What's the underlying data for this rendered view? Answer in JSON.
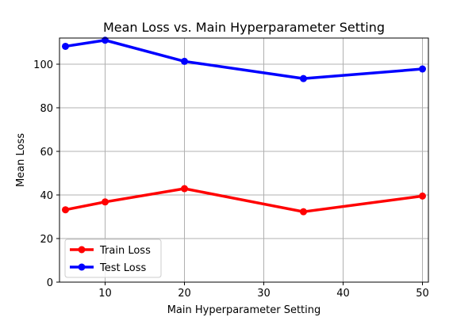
{
  "chart_data": {
    "type": "line",
    "title": "Mean Loss vs. Main Hyperparameter Setting",
    "xlabel": "Main Hyperparameter Setting",
    "ylabel": "Mean Loss",
    "xlim": [
      4.25,
      50.75
    ],
    "ylim": [
      0,
      112
    ],
    "x_ticks": [
      10,
      20,
      30,
      40,
      50
    ],
    "y_ticks": [
      0,
      20,
      40,
      60,
      80,
      100
    ],
    "grid": true,
    "legend_position": "lower-left",
    "x": [
      5,
      10,
      20,
      35,
      50
    ],
    "series": [
      {
        "name": "Train Loss",
        "color": "#ff0000",
        "values": [
          33.2,
          36.8,
          42.9,
          32.3,
          39.5
        ]
      },
      {
        "name": "Test Loss",
        "color": "#0000ff",
        "values": [
          108.2,
          111.0,
          101.3,
          93.4,
          97.8
        ]
      }
    ]
  }
}
